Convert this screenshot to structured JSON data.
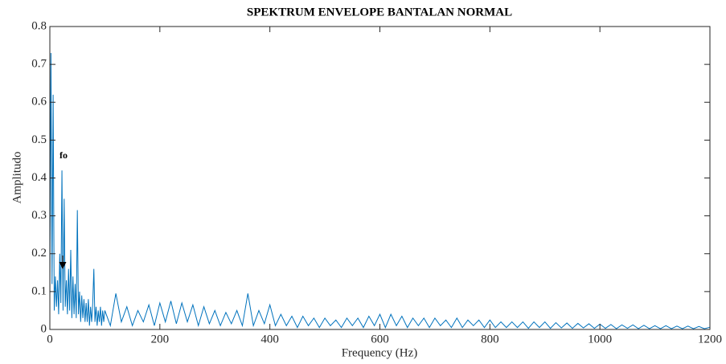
{
  "chart_data": {
    "type": "line",
    "title": "SPEKTRUM ENVELOPE BANTALAN NORMAL",
    "xlabel": "Frequency (Hz)",
    "ylabel": "Amplitudo",
    "annotation": "fo",
    "color": "#0072bd",
    "xlim": [
      0,
      1200
    ],
    "ylim": [
      0,
      0.8
    ],
    "xticks": [
      0,
      200,
      400,
      600,
      800,
      1000,
      1200
    ],
    "yticks": [
      0,
      0.1,
      0.2,
      0.3,
      0.4,
      0.5,
      0.6,
      0.7,
      0.8
    ],
    "x": [
      0,
      2,
      4,
      6,
      8,
      10,
      12,
      14,
      16,
      18,
      20,
      22,
      24,
      26,
      28,
      30,
      32,
      34,
      36,
      38,
      40,
      42,
      44,
      46,
      48,
      50,
      52,
      54,
      56,
      58,
      60,
      62,
      64,
      66,
      68,
      70,
      72,
      74,
      76,
      78,
      80,
      82,
      84,
      86,
      88,
      90,
      92,
      94,
      96,
      98,
      100,
      110,
      120,
      130,
      140,
      150,
      160,
      170,
      180,
      190,
      200,
      210,
      220,
      230,
      240,
      250,
      260,
      270,
      280,
      290,
      300,
      310,
      320,
      330,
      340,
      350,
      360,
      370,
      380,
      390,
      400,
      410,
      420,
      430,
      440,
      450,
      460,
      470,
      480,
      490,
      500,
      510,
      520,
      530,
      540,
      550,
      560,
      570,
      580,
      590,
      600,
      610,
      620,
      630,
      640,
      650,
      660,
      670,
      680,
      690,
      700,
      710,
      720,
      730,
      740,
      750,
      760,
      770,
      780,
      790,
      800,
      810,
      820,
      830,
      840,
      850,
      860,
      870,
      880,
      890,
      900,
      910,
      920,
      930,
      940,
      950,
      960,
      970,
      980,
      990,
      1000,
      1010,
      1020,
      1030,
      1040,
      1050,
      1060,
      1070,
      1080,
      1090,
      1100,
      1110,
      1120,
      1130,
      1140,
      1150,
      1160,
      1170,
      1180,
      1190,
      1200
    ],
    "values": [
      0.08,
      0.73,
      0.12,
      0.62,
      0.05,
      0.14,
      0.06,
      0.13,
      0.04,
      0.2,
      0.07,
      0.42,
      0.05,
      0.345,
      0.06,
      0.13,
      0.04,
      0.16,
      0.05,
      0.21,
      0.03,
      0.14,
      0.04,
      0.12,
      0.03,
      0.315,
      0.04,
      0.1,
      0.02,
      0.09,
      0.03,
      0.08,
      0.02,
      0.07,
      0.02,
      0.08,
      0.01,
      0.06,
      0.02,
      0.07,
      0.16,
      0.02,
      0.06,
      0.01,
      0.05,
      0.02,
      0.06,
      0.01,
      0.05,
      0.02,
      0.05,
      0.01,
      0.095,
      0.02,
      0.06,
      0.01,
      0.05,
      0.02,
      0.065,
      0.01,
      0.07,
      0.02,
      0.075,
      0.015,
      0.07,
      0.02,
      0.065,
      0.01,
      0.06,
      0.015,
      0.05,
      0.01,
      0.045,
      0.015,
      0.05,
      0.01,
      0.095,
      0.01,
      0.05,
      0.015,
      0.065,
      0.01,
      0.04,
      0.01,
      0.035,
      0.005,
      0.035,
      0.01,
      0.03,
      0.005,
      0.03,
      0.01,
      0.025,
      0.005,
      0.03,
      0.01,
      0.03,
      0.005,
      0.035,
      0.01,
      0.04,
      0.005,
      0.04,
      0.01,
      0.035,
      0.005,
      0.03,
      0.01,
      0.03,
      0.005,
      0.03,
      0.01,
      0.025,
      0.005,
      0.03,
      0.005,
      0.025,
      0.01,
      0.025,
      0.005,
      0.025,
      0.005,
      0.02,
      0.005,
      0.02,
      0.005,
      0.02,
      0.003,
      0.02,
      0.005,
      0.02,
      0.003,
      0.018,
      0.004,
      0.017,
      0.003,
      0.016,
      0.004,
      0.015,
      0.003,
      0.014,
      0.003,
      0.013,
      0.002,
      0.012,
      0.003,
      0.012,
      0.002,
      0.011,
      0.002,
      0.01,
      0.002,
      0.01,
      0.002,
      0.009,
      0.002,
      0.009,
      0.002,
      0.008,
      0.002,
      0.006
    ]
  }
}
